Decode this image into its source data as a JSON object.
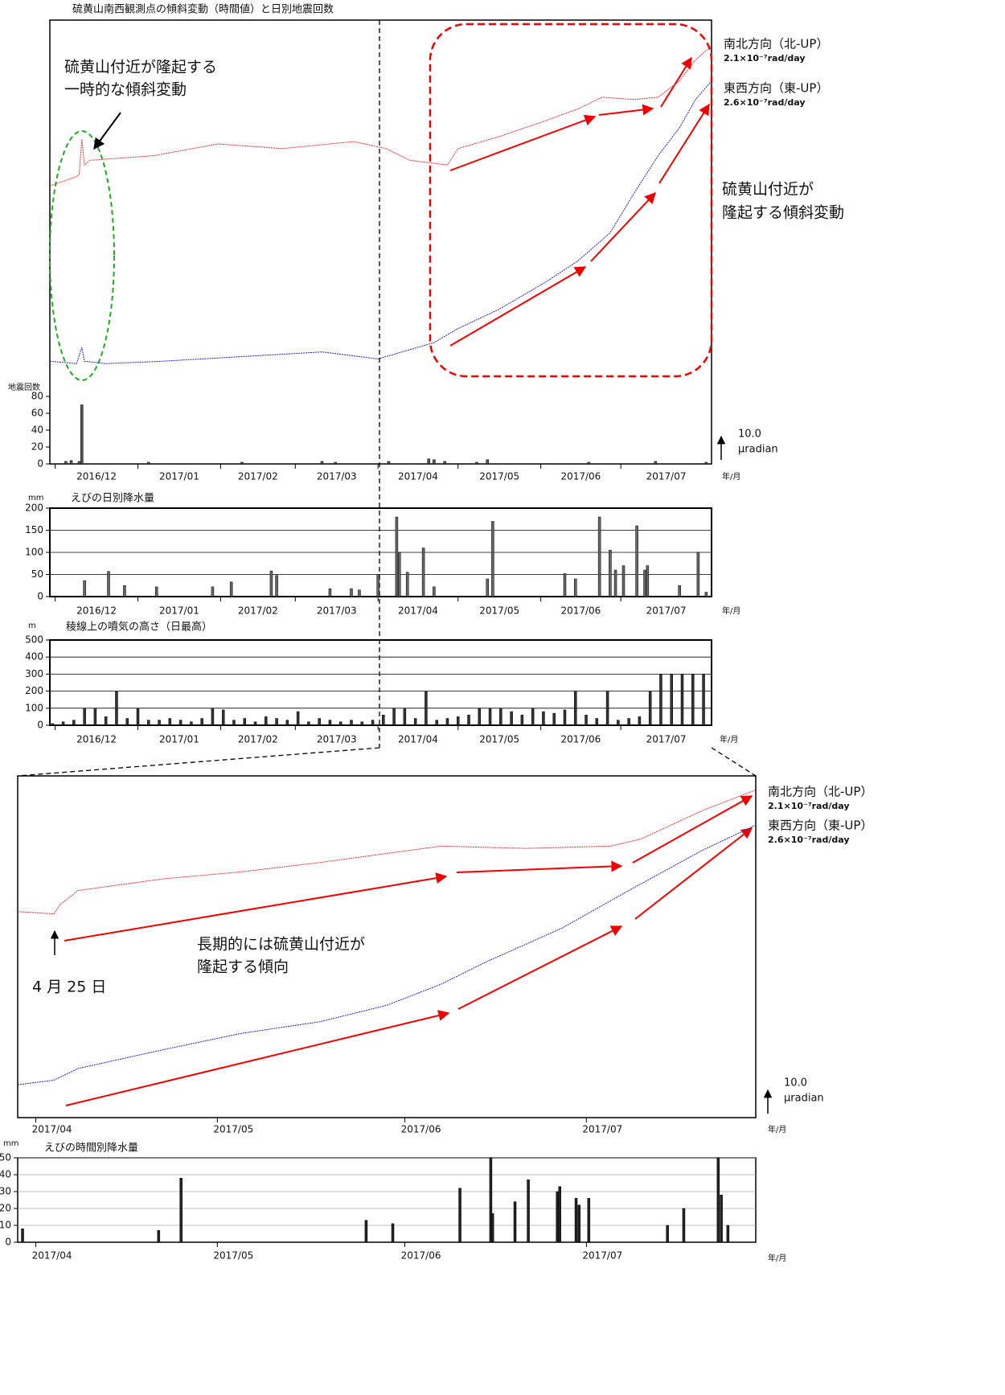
{
  "chart_data": [
    {
      "type": "line",
      "title": "硫黄山南西観測点の傾斜変動（時間値）と日別地震回数",
      "xlim": [
        -2,
        246
      ],
      "ylim": [
        0,
        160
      ],
      "scalebar": {
        "value": 10,
        "label": "10.0",
        "unit": "μradian"
      },
      "series": [
        {
          "name": "南北方向（北-UP）",
          "color": "#e03030",
          "rate_label": "2.1×10⁻⁷rad/day",
          "x": [
            -2,
            8,
            9,
            10,
            11,
            13,
            37,
            61,
            85,
            112,
            124,
            133,
            147,
            151,
            166,
            184,
            196,
            205,
            217,
            226,
            234,
            240,
            246
          ],
          "values": [
            89,
            93,
            94,
            109,
            98,
            100,
            102,
            107,
            105,
            108,
            105,
            100,
            98,
            105,
            110,
            117,
            122,
            127,
            126,
            127,
            134,
            143,
            149
          ]
        },
        {
          "name": "東西方向（東-UP）",
          "color": "#2020c0",
          "rate_label": "2.6×10⁻⁷rad/day",
          "x": [
            -2,
            8,
            10,
            11,
            19,
            40,
            70,
            100,
            121,
            130,
            142,
            151,
            166,
            184,
            196,
            208,
            217,
            226,
            234,
            240,
            246
          ],
          "values": [
            14,
            13,
            20,
            14,
            13,
            14,
            16,
            18,
            15,
            18,
            22,
            28,
            36,
            48,
            57,
            69,
            86,
            102,
            114,
            126,
            134
          ]
        }
      ]
    },
    {
      "type": "bar",
      "ylabel": "地震回数",
      "color": "#555555",
      "xunit": "年/月",
      "xlim": [
        -2,
        246
      ],
      "ylim": [
        0,
        80
      ],
      "yticks": [
        0,
        20,
        40,
        60,
        80
      ],
      "xticks": [
        {
          "value": 0,
          "label": "2016/12"
        },
        {
          "value": 31,
          "label": "2017/01"
        },
        {
          "value": 62,
          "label": "2017/02"
        },
        {
          "value": 90,
          "label": "2017/03"
        },
        {
          "value": 121,
          "label": "2017/04"
        },
        {
          "value": 151,
          "label": "2017/05"
        },
        {
          "value": 182,
          "label": "2017/06"
        },
        {
          "value": 212,
          "label": "2017/07"
        }
      ],
      "x": [
        4,
        6,
        9,
        10,
        35,
        70,
        100,
        105,
        125,
        140,
        142,
        146,
        158,
        162,
        200,
        225,
        244
      ],
      "values": [
        3,
        4,
        3,
        70,
        2,
        2,
        3,
        2,
        3,
        6,
        5,
        3,
        2,
        5,
        2,
        3,
        2
      ]
    },
    {
      "type": "bar",
      "title": "えびの日別降水量",
      "ylabel": "mm",
      "color": "#666666",
      "grid": true,
      "xunit": "年/月",
      "xlim": [
        -2,
        246
      ],
      "ylim": [
        0,
        200
      ],
      "yticks": [
        0,
        50,
        100,
        150,
        200
      ],
      "xticks": [
        {
          "value": 0,
          "label": "2016/12"
        },
        {
          "value": 31,
          "label": "2017/01"
        },
        {
          "value": 62,
          "label": "2017/02"
        },
        {
          "value": 90,
          "label": "2017/03"
        },
        {
          "value": 121,
          "label": "2017/04"
        },
        {
          "value": 151,
          "label": "2017/05"
        },
        {
          "value": 182,
          "label": "2017/06"
        },
        {
          "value": 212,
          "label": "2017/07"
        }
      ],
      "x": [
        11,
        20,
        26,
        38,
        59,
        66,
        81,
        83,
        103,
        111,
        114,
        121,
        128,
        129,
        132,
        138,
        142,
        162,
        164,
        191,
        195,
        204,
        208,
        210,
        213,
        218,
        221,
        222,
        234,
        241,
        244
      ],
      "values": [
        36,
        57,
        25,
        22,
        22,
        33,
        58,
        48,
        18,
        18,
        15,
        50,
        180,
        100,
        55,
        110,
        22,
        40,
        170,
        52,
        40,
        180,
        105,
        60,
        70,
        160,
        60,
        70,
        25,
        100,
        10
      ]
    },
    {
      "type": "bar",
      "title": "稜線上の噴気の高さ（日最高）",
      "ylabel": "m",
      "color": "#333333",
      "grid": true,
      "xunit": "年/月",
      "xlim": [
        -2,
        246
      ],
      "ylim": [
        0,
        500
      ],
      "yticks": [
        0,
        100,
        200,
        300,
        400,
        500
      ],
      "xticks": [
        {
          "value": 0,
          "label": "2016/12"
        },
        {
          "value": 31,
          "label": "2017/01"
        },
        {
          "value": 62,
          "label": "2017/02"
        },
        {
          "value": 90,
          "label": "2017/03"
        },
        {
          "value": 121,
          "label": "2017/04"
        },
        {
          "value": 151,
          "label": "2017/05"
        },
        {
          "value": 182,
          "label": "2017/06"
        },
        {
          "value": 212,
          "label": "2017/07"
        }
      ],
      "x": [
        -1,
        3,
        7,
        11,
        15,
        19,
        23,
        27,
        31,
        35,
        39,
        43,
        47,
        51,
        55,
        59,
        63,
        67,
        71,
        75,
        79,
        83,
        87,
        91,
        95,
        99,
        103,
        107,
        111,
        115,
        119,
        123,
        127,
        131,
        135,
        139,
        143,
        147,
        151,
        155,
        159,
        163,
        167,
        171,
        175,
        179,
        183,
        187,
        191,
        195,
        199,
        203,
        207,
        211,
        215,
        219,
        223,
        227,
        231,
        235,
        239,
        243
      ],
      "values": [
        10,
        20,
        30,
        100,
        100,
        50,
        200,
        40,
        100,
        30,
        30,
        40,
        30,
        20,
        40,
        100,
        90,
        30,
        40,
        20,
        50,
        40,
        30,
        80,
        20,
        40,
        30,
        20,
        30,
        20,
        30,
        60,
        100,
        100,
        40,
        200,
        30,
        40,
        50,
        60,
        100,
        100,
        100,
        80,
        60,
        100,
        80,
        70,
        90,
        200,
        60,
        40,
        200,
        30,
        40,
        50,
        200,
        300,
        300,
        300,
        300,
        300
      ]
    },
    {
      "type": "line",
      "xunit": "年/月",
      "xlim": [
        118,
        240
      ],
      "ylim": [
        10,
        156
      ],
      "xticks": [
        {
          "value": 121,
          "label": "2017/04"
        },
        {
          "value": 151,
          "label": "2017/05"
        },
        {
          "value": 182,
          "label": "2017/06"
        },
        {
          "value": 212,
          "label": "2017/07"
        }
      ],
      "scalebar": {
        "value": 10,
        "label": "10.0",
        "unit": "μradian"
      },
      "series": [
        {
          "name": "南北方向（北-UP）",
          "color": "#e03030",
          "rate_label": "2.1×10⁻⁷rad/day",
          "x": [
            118,
            124,
            125,
            128,
            142,
            155,
            168,
            188,
            202,
            216,
            221,
            231,
            240
          ],
          "values": [
            98,
            97,
            101,
            107,
            112,
            115,
            119,
            126,
            125,
            126,
            129,
            141,
            150
          ]
        },
        {
          "name": "東西方向（東-UP）",
          "color": "#2020c0",
          "rate_label": "2.6×10⁻⁷rad/day",
          "x": [
            118,
            124,
            128,
            142,
            155,
            168,
            179,
            188,
            195,
            208,
            219,
            231,
            240
          ],
          "values": [
            24,
            26,
            31,
            39,
            46,
            51,
            58,
            67,
            76,
            91,
            107,
            124,
            135
          ]
        }
      ]
    },
    {
      "type": "bar",
      "title": "えびの時間別降水量",
      "ylabel": "mm",
      "color": "#222222",
      "grid": true,
      "xunit": "年/月",
      "xlim": [
        118,
        240
      ],
      "ylim": [
        0,
        50
      ],
      "yticks": [
        0,
        10,
        20,
        30,
        40,
        50
      ],
      "xticks": [
        {
          "value": 121,
          "label": "2017/04"
        },
        {
          "value": 151,
          "label": "2017/05"
        },
        {
          "value": 182,
          "label": "2017/06"
        },
        {
          "value": 212,
          "label": "2017/07"
        }
      ],
      "x": [
        118.8,
        141.3,
        145.0,
        175.6,
        180.0,
        191.1,
        196.2,
        196.5,
        200.2,
        202.4,
        207.2,
        207.6,
        210.3,
        210.8,
        212.4,
        225.4,
        228.1,
        233.8,
        234.3,
        235.4
      ],
      "values": [
        8,
        7,
        38,
        13,
        11,
        32,
        50,
        17,
        24,
        37,
        30,
        33,
        26,
        22,
        26,
        10,
        20,
        50,
        28,
        10
      ]
    }
  ],
  "annotations": [
    {
      "lines": [
        "硫黄山付近が隆起する",
        "一時的な傾斜変動"
      ]
    },
    {
      "lines": [
        "硫黄山付近が",
        "隆起する傾斜変動"
      ]
    },
    {
      "lines": [
        "長期的には硫黄山付近が",
        "隆起する傾向"
      ]
    },
    {
      "lines": [
        "4 月 25 日"
      ]
    }
  ]
}
